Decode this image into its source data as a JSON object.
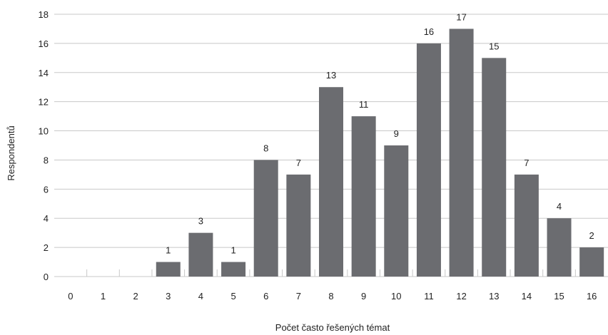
{
  "chart_data": {
    "type": "bar",
    "categories": [
      "0",
      "1",
      "2",
      "3",
      "4",
      "5",
      "6",
      "7",
      "8",
      "9",
      "10",
      "11",
      "12",
      "13",
      "14",
      "15",
      "16"
    ],
    "values": [
      0,
      0,
      0,
      1,
      3,
      1,
      8,
      7,
      13,
      11,
      9,
      16,
      17,
      15,
      7,
      4,
      2
    ],
    "data_labels": [
      "",
      "",
      "",
      "1",
      "3",
      "1",
      "8",
      "7",
      "13",
      "11",
      "9",
      "16",
      "17",
      "15",
      "7",
      "4",
      "2"
    ],
    "title": "",
    "xlabel": "Počet často řešených témat",
    "ylabel": "Respondentů",
    "ylim": [
      0,
      18
    ],
    "yticks": [
      0,
      2,
      4,
      6,
      8,
      10,
      12,
      14,
      16,
      18
    ],
    "grid": true,
    "legend": "none",
    "bar_color": "#6b6c70",
    "grid_color": "#c8c8c8"
  }
}
